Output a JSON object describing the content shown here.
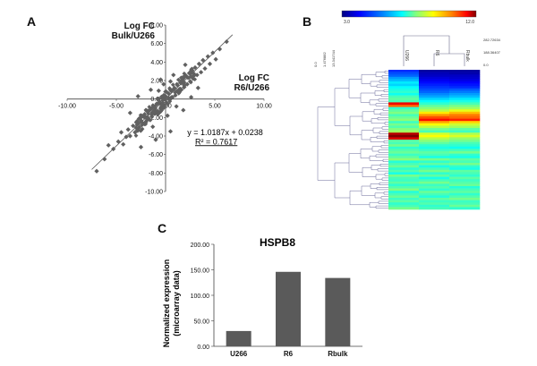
{
  "panels": {
    "a": {
      "letter": "A"
    },
    "b": {
      "letter": "B"
    },
    "c": {
      "letter": "C"
    }
  },
  "chart_data": [
    {
      "type": "scatter",
      "id": "A",
      "title": "",
      "y_title": [
        "Log FC",
        "Bulk/U266"
      ],
      "x_title": [
        "Log FC",
        "R6/U266"
      ],
      "xlim": [
        -10,
        10
      ],
      "ylim": [
        -10,
        8
      ],
      "x_ticks": [
        "-10.00",
        "-5.00",
        "0.00",
        "5.00",
        "10.00"
      ],
      "y_ticks": [
        "8.00",
        "6.00",
        "4.00",
        "2.00",
        "0.00",
        "-2.00",
        "-4.00",
        "-6.00",
        "-8.00",
        "-10.00"
      ],
      "fit": {
        "slope": 1.0187,
        "intercept": 0.0238,
        "r2": 0.7617
      },
      "equation": "y = 1.0187x + 0.0238",
      "r2_label": "R² = 0.7617",
      "series_color": "#606060",
      "points": [
        [
          -7.0,
          -7.8
        ],
        [
          -6.2,
          -6.5
        ],
        [
          -5.8,
          -5.0
        ],
        [
          -5.3,
          -5.4
        ],
        [
          -4.8,
          -4.6
        ],
        [
          -4.5,
          -3.6
        ],
        [
          -4.3,
          -4.9
        ],
        [
          -4.0,
          -4.1
        ],
        [
          -3.8,
          -3.3
        ],
        [
          -3.6,
          -4.0
        ],
        [
          -3.3,
          -2.9
        ],
        [
          -3.1,
          -3.6
        ],
        [
          -2.9,
          -2.4
        ],
        [
          -2.7,
          -3.1
        ],
        [
          -2.5,
          -2.0
        ],
        [
          -2.4,
          -2.8
        ],
        [
          -2.2,
          -1.8
        ],
        [
          -2.0,
          -2.5
        ],
        [
          -1.9,
          -1.3
        ],
        [
          -1.7,
          -2.2
        ],
        [
          -1.5,
          -1.1
        ],
        [
          -1.4,
          -1.9
        ],
        [
          -1.2,
          -0.8
        ],
        [
          -1.1,
          -1.6
        ],
        [
          -0.9,
          -0.5
        ],
        [
          -0.8,
          -1.3
        ],
        [
          -0.6,
          -0.3
        ],
        [
          -0.5,
          -1.0
        ],
        [
          -0.3,
          0.1
        ],
        [
          -0.2,
          -0.6
        ],
        [
          0.0,
          0.3
        ],
        [
          0.1,
          -0.4
        ],
        [
          0.3,
          0.6
        ],
        [
          0.4,
          -0.1
        ],
        [
          0.6,
          0.9
        ],
        [
          0.7,
          0.2
        ],
        [
          0.9,
          1.2
        ],
        [
          1.0,
          0.4
        ],
        [
          1.2,
          1.5
        ],
        [
          1.3,
          0.7
        ],
        [
          1.5,
          1.8
        ],
        [
          1.6,
          1.0
        ],
        [
          1.8,
          2.2
        ],
        [
          1.9,
          1.3
        ],
        [
          2.1,
          2.5
        ],
        [
          2.2,
          1.6
        ],
        [
          2.4,
          2.8
        ],
        [
          2.5,
          1.9
        ],
        [
          2.7,
          3.1
        ],
        [
          2.8,
          2.2
        ],
        [
          3.0,
          3.4
        ],
        [
          3.2,
          2.6
        ],
        [
          3.4,
          3.8
        ],
        [
          3.6,
          2.9
        ],
        [
          3.8,
          4.2
        ],
        [
          4.0,
          3.3
        ],
        [
          4.3,
          4.6
        ],
        [
          4.5,
          3.8
        ],
        [
          4.8,
          5.0
        ],
        [
          5.1,
          4.3
        ],
        [
          5.5,
          5.4
        ],
        [
          6.2,
          6.2
        ],
        [
          -2.5,
          -5.2
        ],
        [
          -1.0,
          -4.4
        ],
        [
          0.5,
          -3.5
        ],
        [
          -2.8,
          0.3
        ],
        [
          -1.5,
          1.0
        ],
        [
          1.8,
          -1.2
        ],
        [
          2.6,
          0.2
        ],
        [
          -0.5,
          2.1
        ],
        [
          -3.6,
          -1.5
        ],
        [
          3.3,
          1.2
        ],
        [
          0.8,
          2.6
        ],
        [
          -1.3,
          -3.0
        ],
        [
          2.0,
          3.7
        ],
        [
          -0.2,
          1.6
        ],
        [
          0.2,
          -1.8
        ],
        [
          1.1,
          -0.8
        ],
        [
          -0.7,
          0.9
        ],
        [
          0.5,
          1.9
        ]
      ]
    },
    {
      "type": "heatmap",
      "id": "B",
      "colorbar_min": "3.0",
      "colorbar_max": "12.0",
      "columns": [
        "U266",
        "R6",
        "Rbulk"
      ],
      "dendro_labels": [
        "0.0",
        "1.476882",
        "13.341744"
      ],
      "right_labels": [
        "282.72634",
        "188.36407",
        "0.0"
      ],
      "colorscale": [
        "#000080",
        "#0000ff",
        "#0080ff",
        "#00ffff",
        "#80ff80",
        "#ffff00",
        "#ff8000",
        "#ff0000",
        "#800000"
      ],
      "rows": [
        [
          4.5,
          3.3,
          3.3
        ],
        [
          4.8,
          3.5,
          3.4
        ],
        [
          5.0,
          3.6,
          3.6
        ],
        [
          5.5,
          3.8,
          3.7
        ],
        [
          5.8,
          4.0,
          3.9
        ],
        [
          6.2,
          4.2,
          4.1
        ],
        [
          6.0,
          4.4,
          4.3
        ],
        [
          6.4,
          4.6,
          4.5
        ],
        [
          6.6,
          4.8,
          4.9
        ],
        [
          6.8,
          5.0,
          5.2
        ],
        [
          6.5,
          5.3,
          5.5
        ],
        [
          7.0,
          5.6,
          5.8
        ],
        [
          7.2,
          6.0,
          6.2
        ],
        [
          7.0,
          6.4,
          6.6
        ],
        [
          11.0,
          6.8,
          7.0
        ],
        [
          10.0,
          7.2,
          7.4
        ],
        [
          6.8,
          7.6,
          7.8
        ],
        [
          7.2,
          8.0,
          8.4
        ],
        [
          7.5,
          8.8,
          9.2
        ],
        [
          7.0,
          9.6,
          9.8
        ],
        [
          7.3,
          10.2,
          10.0
        ],
        [
          7.6,
          10.8,
          10.6
        ],
        [
          6.9,
          9.4,
          9.0
        ],
        [
          7.4,
          8.6,
          8.2
        ],
        [
          7.1,
          8.0,
          7.8
        ],
        [
          7.5,
          7.4,
          7.2
        ],
        [
          7.8,
          7.0,
          6.9
        ],
        [
          11.5,
          8.2,
          7.9
        ],
        [
          12.0,
          8.6,
          8.3
        ],
        [
          11.2,
          8.0,
          7.7
        ],
        [
          7.2,
          7.6,
          7.4
        ],
        [
          7.0,
          7.2,
          7.0
        ],
        [
          7.4,
          6.8,
          6.8
        ],
        [
          6.8,
          6.6,
          6.5
        ],
        [
          7.1,
          6.9,
          7.0
        ],
        [
          7.3,
          7.2,
          7.4
        ],
        [
          6.9,
          7.0,
          6.8
        ],
        [
          7.2,
          6.6,
          6.6
        ],
        [
          7.6,
          7.4,
          7.2
        ],
        [
          6.7,
          6.8,
          7.0
        ],
        [
          7.0,
          7.2,
          7.4
        ],
        [
          7.3,
          6.6,
          6.8
        ],
        [
          6.8,
          7.0,
          6.6
        ],
        [
          7.1,
          7.4,
          7.2
        ],
        [
          6.6,
          6.8,
          7.0
        ],
        [
          7.4,
          7.2,
          6.8
        ],
        [
          7.0,
          6.6,
          7.2
        ],
        [
          6.9,
          7.0,
          6.9
        ],
        [
          7.2,
          7.4,
          7.1
        ],
        [
          6.8,
          6.9,
          7.3
        ],
        [
          7.1,
          7.1,
          6.7
        ],
        [
          7.5,
          6.8,
          7.0
        ],
        [
          6.7,
          7.3,
          7.2
        ],
        [
          7.0,
          7.0,
          6.8
        ],
        [
          7.3,
          6.7,
          7.1
        ],
        [
          6.9,
          7.2,
          7.4
        ],
        [
          7.2,
          6.9,
          6.9
        ],
        [
          6.8,
          7.1,
          7.0
        ],
        [
          7.0,
          6.8,
          7.3
        ],
        [
          7.4,
          7.0,
          6.8
        ]
      ]
    },
    {
      "type": "bar",
      "id": "C",
      "title": "HSPB8",
      "ylabel": "Normalized expression (microarray data)",
      "ylabel_lines": [
        "Normalized expression",
        "(microarray data)"
      ],
      "categories": [
        "U266",
        "R6",
        "Rbulk"
      ],
      "values": [
        30,
        146,
        134
      ],
      "ylim": [
        0,
        200
      ],
      "y_ticks": [
        "200.00",
        "150.00",
        "100.00",
        "50.00",
        "0.00"
      ],
      "bar_color": "#5a5a5a"
    }
  ]
}
